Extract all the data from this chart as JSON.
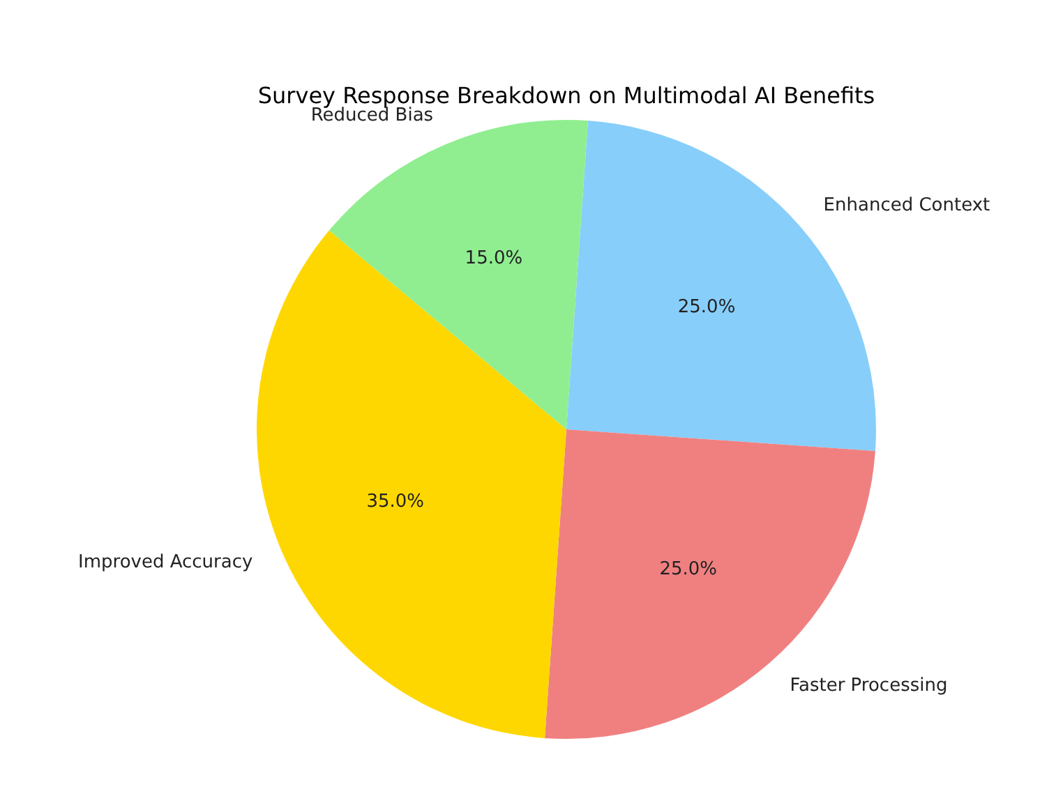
{
  "chart_data": {
    "type": "pie",
    "title": "Survey Response Breakdown on Multimodal AI Benefits",
    "categories": [
      "Enhanced Context",
      "Faster Processing",
      "Improved Accuracy",
      "Reduced Bias"
    ],
    "values": [
      25,
      25,
      35,
      15
    ],
    "colors": [
      "#87cefa",
      "#f08080",
      "#ffd700",
      "#90ee90"
    ],
    "value_labels": [
      "25.0%",
      "25.0%",
      "35.0%",
      "15.0%"
    ],
    "legend": false
  }
}
